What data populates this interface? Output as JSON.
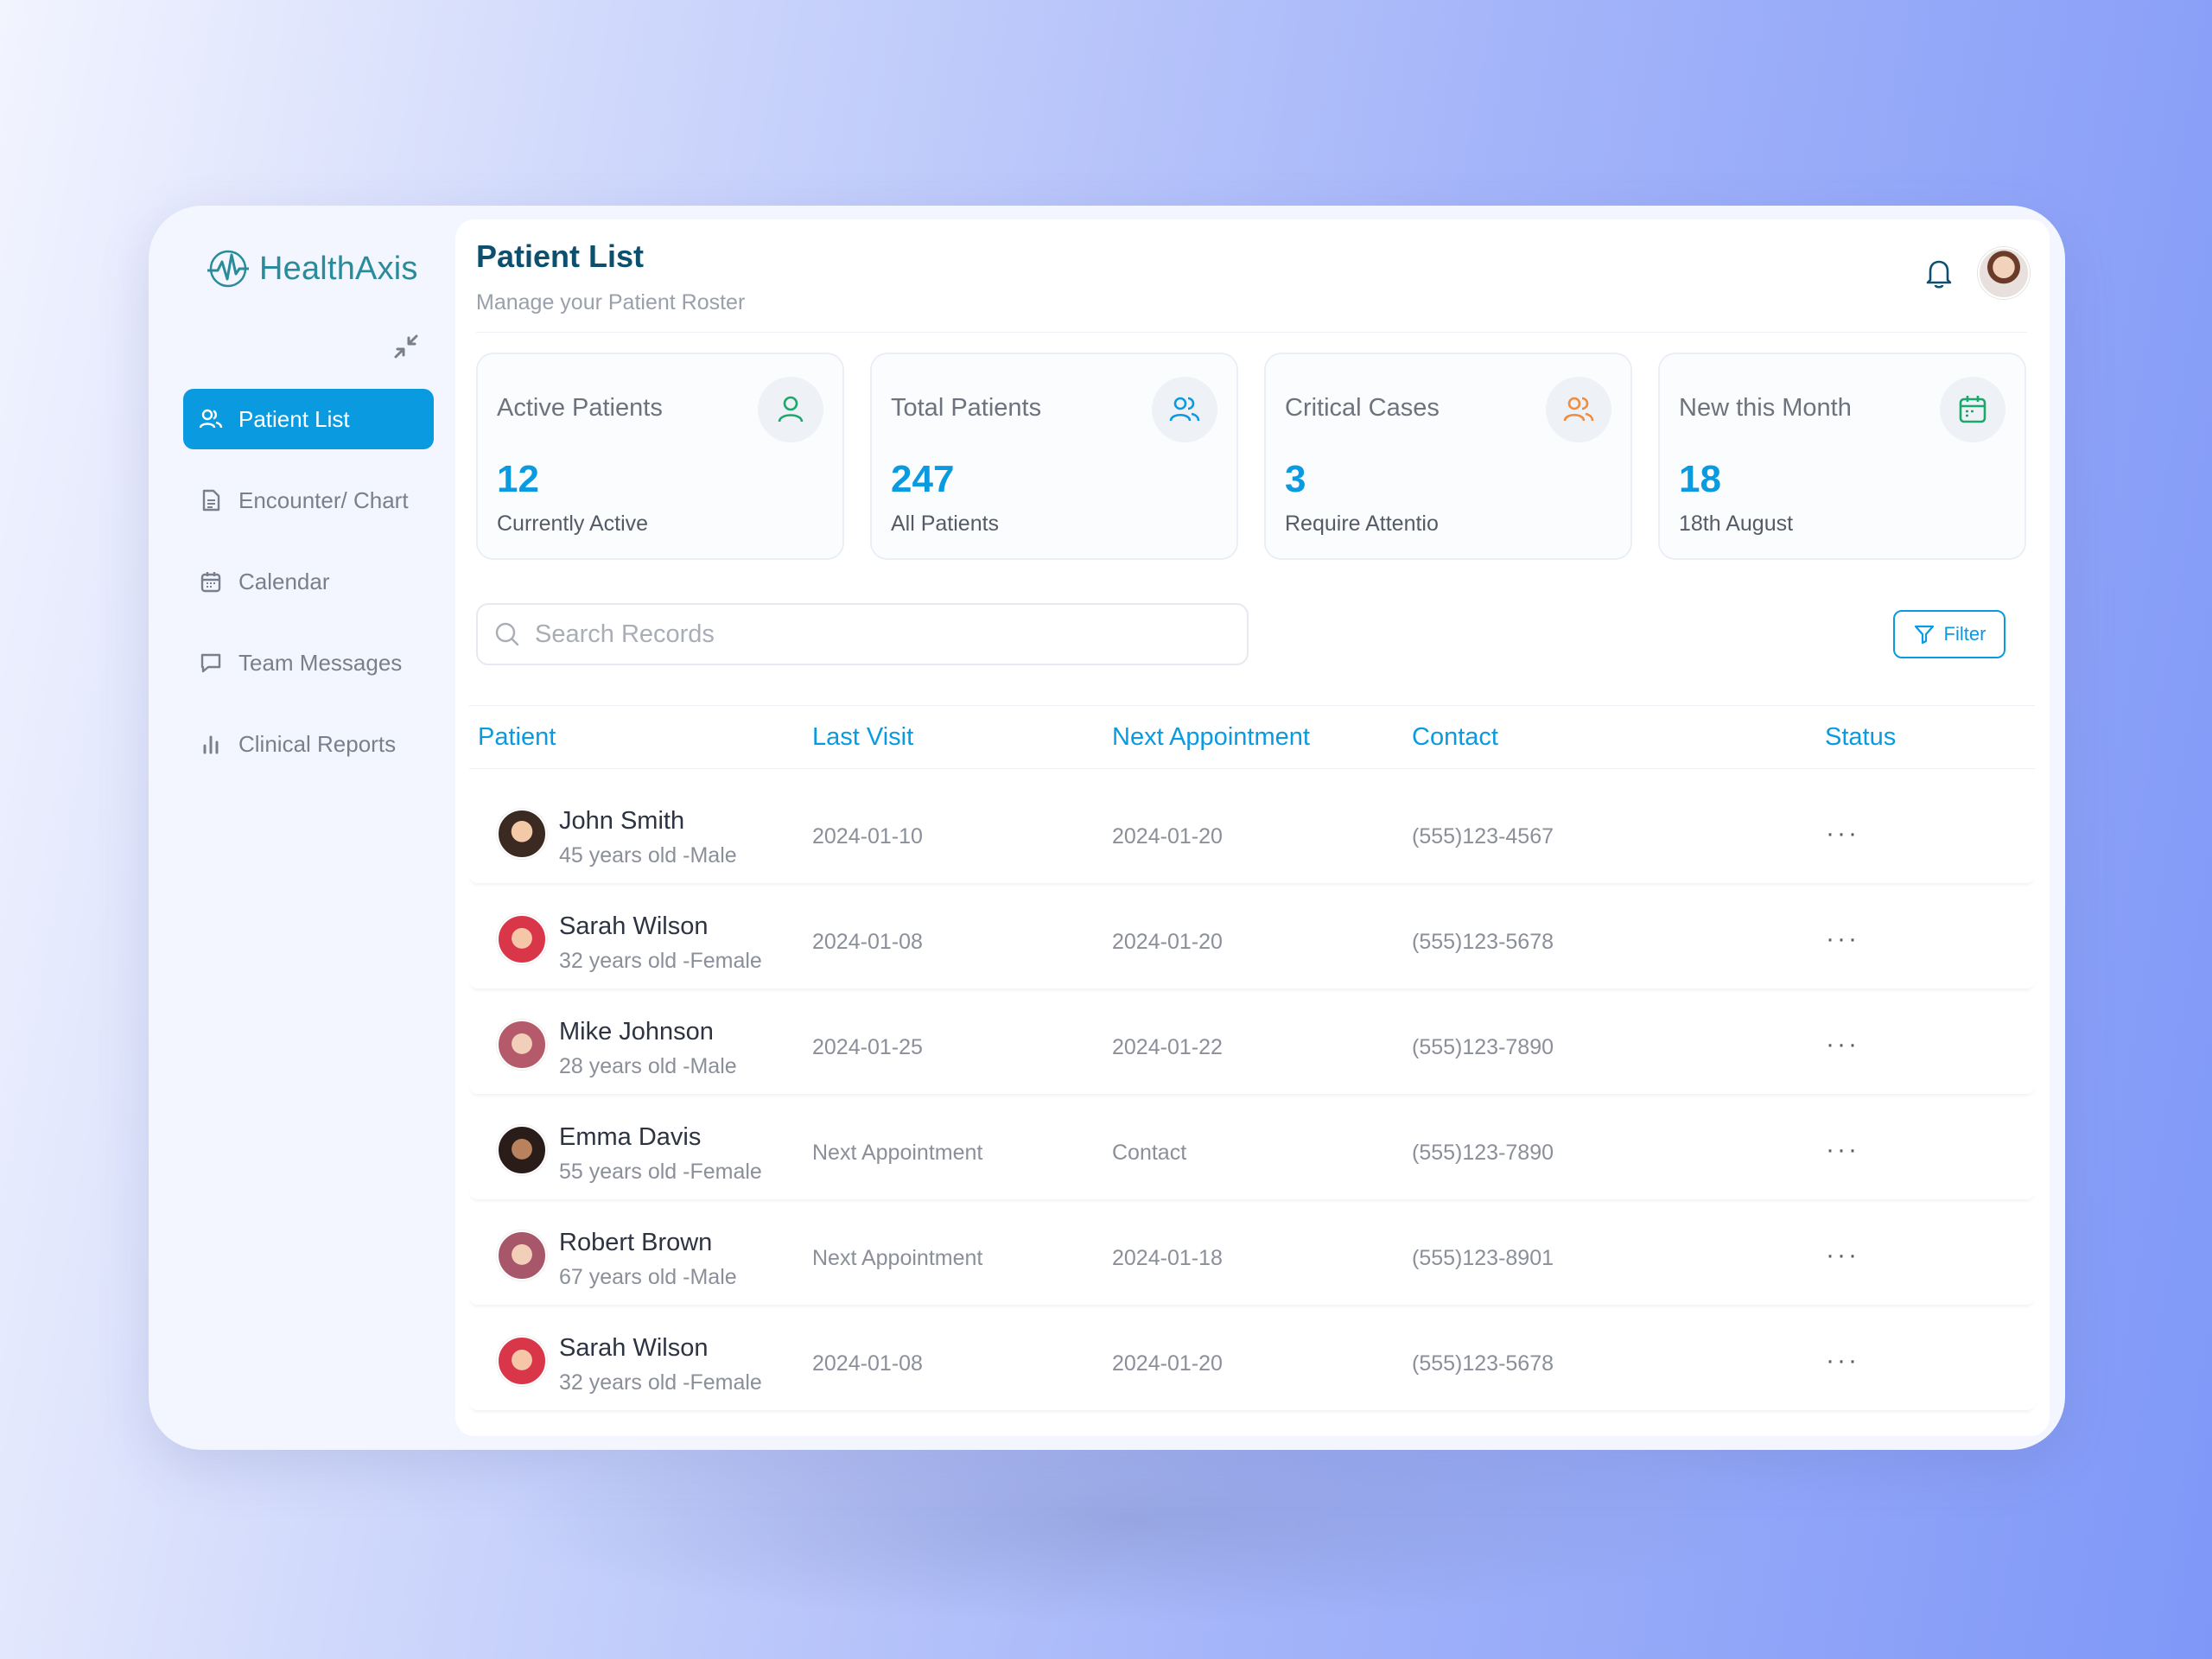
{
  "app": {
    "name": "HealthAxis"
  },
  "header": {
    "title": "Patient List",
    "subtitle": "Manage your Patient Roster"
  },
  "sidebar": {
    "items": [
      {
        "label": "Patient List",
        "icon": "users-icon",
        "active": true
      },
      {
        "label": "Encounter/ Chart",
        "icon": "document-icon",
        "active": false
      },
      {
        "label": "Calendar",
        "icon": "calendar-icon",
        "active": false
      },
      {
        "label": "Team Messages",
        "icon": "message-icon",
        "active": false
      },
      {
        "label": "Clinical Reports",
        "icon": "bar-chart-icon",
        "active": false
      }
    ]
  },
  "stats": [
    {
      "title": "Active Patients",
      "value": "12",
      "sub": "Currently Active",
      "icon": "user-icon",
      "icon_color": "#1aa86b"
    },
    {
      "title": "Total Patients",
      "value": "247",
      "sub": "All Patients",
      "icon": "users-icon",
      "icon_color": "#0a9ae0"
    },
    {
      "title": "Critical Cases",
      "value": "3",
      "sub": "Require Attentio",
      "icon": "users-icon",
      "icon_color": "#f08c3c"
    },
    {
      "title": "New this Month",
      "value": "18",
      "sub": "18th August",
      "icon": "calendar-icon",
      "icon_color": "#1aa86b"
    }
  ],
  "search": {
    "placeholder": "Search Records",
    "value": ""
  },
  "filter": {
    "label": "Filter"
  },
  "table": {
    "columns": [
      "Patient",
      "Last Visit",
      "Next Appointment",
      "Contact",
      "Status"
    ],
    "rows": [
      {
        "name": "John Smith",
        "meta": "45 years old -Male",
        "last_visit": "2024-01-10",
        "next": "2024-01-20",
        "contact": "(555)123-4567",
        "status": "···"
      },
      {
        "name": "Sarah Wilson",
        "meta": "32 years old -Female",
        "last_visit": "2024-01-08",
        "next": "2024-01-20",
        "contact": "(555)123-5678",
        "status": "···"
      },
      {
        "name": "Mike Johnson",
        "meta": "28 years old -Male",
        "last_visit": "2024-01-25",
        "next": "2024-01-22",
        "contact": "(555)123-7890",
        "status": "···"
      },
      {
        "name": "Emma Davis",
        "meta": "55 years old -Female",
        "last_visit": "Next Appointment",
        "next": "Contact",
        "contact": "(555)123-7890",
        "status": "···"
      },
      {
        "name": "Robert Brown",
        "meta": "67 years old -Male",
        "last_visit": "Next Appointment",
        "next": "2024-01-18",
        "contact": "(555)123-8901",
        "status": "···"
      },
      {
        "name": "Sarah Wilson",
        "meta": "32 years old -Female",
        "last_visit": "2024-01-08",
        "next": "2024-01-20",
        "contact": "(555)123-5678",
        "status": "···"
      }
    ]
  },
  "colors": {
    "accent": "#0a9ae0",
    "title": "#0d4f6e",
    "brand": "#2a8b9b"
  }
}
